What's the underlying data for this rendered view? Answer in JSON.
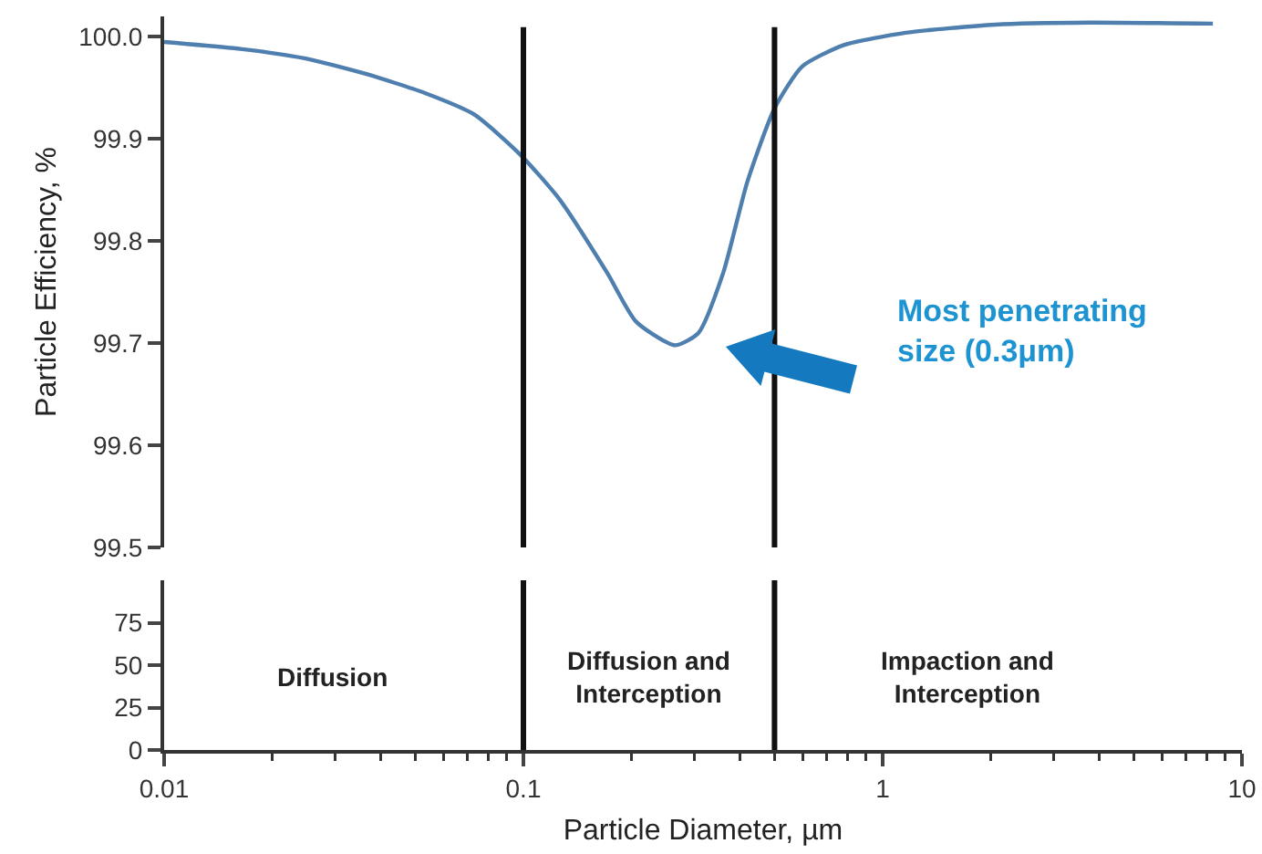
{
  "chart_data": [
    {
      "type": "line",
      "ylabel": "Particle Efficiency, %",
      "log": "x",
      "tick_labels": "y",
      "grid": false,
      "xlim": [
        0.01,
        10
      ],
      "xticks": [
        0.01,
        0.1,
        1,
        10
      ],
      "ylim": [
        99.5,
        100.02
      ],
      "yticks": [
        99.5,
        99.6,
        99.7,
        99.8,
        99.9,
        {
          "value": 100,
          "label": "100.0"
        }
      ],
      "series": [
        {
          "color": "#4f7fae",
          "x": [
            0.01,
            0.0165,
            0.0246,
            0.0362,
            0.0532,
            0.0729,
            0.0978,
            0.126,
            0.171,
            0.206,
            0.264,
            0.307,
            0.36,
            0.42,
            0.5,
            0.597,
            0.78,
            1.16,
            2.06,
            3.74,
            8.3
          ],
          "values": [
            99.995,
            99.988,
            99.979,
            99.964,
            99.945,
            99.924,
            99.885,
            99.841,
            99.769,
            99.721,
            99.698,
            99.71,
            99.769,
            99.858,
            99.93,
            99.971,
            99.992,
            100.004,
            100.012,
            100.014,
            100.013
          ]
        }
      ],
      "ref_lines": [
        {
          "axis": "x",
          "value": 0.1,
          "color": "#111111"
        },
        {
          "axis": "x",
          "value": 0.5,
          "color": "#111111"
        }
      ],
      "annotations": [
        "Most penetrating\nsize (0.3μm)"
      ]
    },
    {
      "type": "line",
      "xlabel": "Particle Diameter, µm",
      "log": "x",
      "grid": false,
      "xlim": [
        0.01,
        10
      ],
      "xticks": [
        0.01,
        0.1,
        1,
        10
      ],
      "ylim": [
        0,
        100
      ],
      "yticks": [
        0,
        25,
        50,
        75
      ],
      "ref_lines": [
        {
          "axis": "x",
          "value": 0.1,
          "color": "#111111"
        },
        {
          "axis": "x",
          "value": 0.5,
          "color": "#111111"
        }
      ],
      "annotations": [
        "Diffusion",
        "Diffusion and\nInterception",
        "Impaction and\nInterception"
      ]
    }
  ]
}
